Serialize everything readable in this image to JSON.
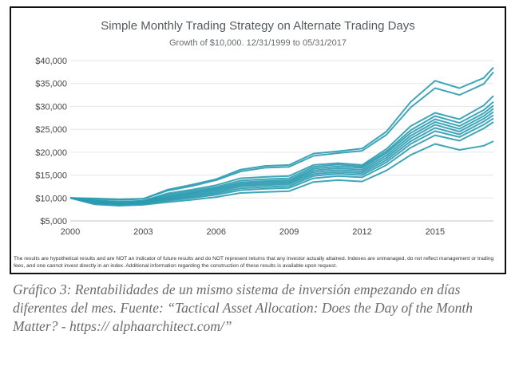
{
  "chart_data": {
    "type": "line",
    "title": "Simple Monthly Trading Strategy on Alternate Trading Days",
    "subtitle": "Growth of $10,000. 12/31/1999 to 05/31/2017",
    "xlabel": "",
    "ylabel": "",
    "x_ticks": [
      "2000",
      "2003",
      "2006",
      "2009",
      "2012",
      "2015"
    ],
    "y_ticks": [
      "$5,000",
      "$10,000",
      "$15,000",
      "$20,000",
      "$25,000",
      "$30,000",
      "$35,000",
      "$40,000"
    ],
    "xlim": [
      2000,
      2017.4
    ],
    "ylim": [
      5000,
      40000
    ],
    "grid": "horizontal",
    "line_color": "#2a9bb0",
    "series": [
      {
        "x": [
          2000,
          2001,
          2002,
          2003,
          2004,
          2005,
          2006,
          2007,
          2008,
          2009,
          2010,
          2011,
          2012,
          2013,
          2014,
          2015,
          2016,
          2017,
          2017.4
        ],
        "values": [
          10000,
          9800,
          9600,
          9800,
          11800,
          12900,
          14100,
          16200,
          17000,
          17200,
          19700,
          20200,
          20800,
          24500,
          31000,
          35600,
          34000,
          36200,
          38500
        ]
      },
      {
        "x": [
          2000,
          2001,
          2002,
          2003,
          2004,
          2005,
          2006,
          2007,
          2008,
          2009,
          2010,
          2011,
          2012,
          2013,
          2014,
          2015,
          2016,
          2017,
          2017.4
        ],
        "values": [
          10000,
          9900,
          9700,
          9800,
          11600,
          12600,
          13900,
          15800,
          16600,
          16800,
          19200,
          19800,
          20300,
          23800,
          29800,
          34000,
          32500,
          34900,
          37500
        ]
      },
      {
        "x": [
          2000,
          2001,
          2002,
          2003,
          2004,
          2005,
          2006,
          2007,
          2008,
          2009,
          2010,
          2011,
          2012,
          2013,
          2014,
          2015,
          2016,
          2017,
          2017.4
        ],
        "values": [
          10000,
          9500,
          9200,
          9400,
          11000,
          11800,
          12800,
          14300,
          14600,
          14800,
          17200,
          17600,
          17200,
          20700,
          25700,
          28600,
          27200,
          30200,
          32300
        ]
      },
      {
        "x": [
          2000,
          2001,
          2002,
          2003,
          2004,
          2005,
          2006,
          2007,
          2008,
          2009,
          2010,
          2011,
          2012,
          2013,
          2014,
          2015,
          2016,
          2017,
          2017.4
        ],
        "values": [
          10000,
          9400,
          9100,
          9300,
          10700,
          11500,
          12400,
          13800,
          14100,
          14300,
          16800,
          17300,
          16900,
          20200,
          24800,
          27900,
          26400,
          29200,
          31000
        ]
      },
      {
        "x": [
          2000,
          2001,
          2002,
          2003,
          2004,
          2005,
          2006,
          2007,
          2008,
          2009,
          2010,
          2011,
          2012,
          2013,
          2014,
          2015,
          2016,
          2017,
          2017.4
        ],
        "values": [
          10000,
          9300,
          9000,
          9200,
          10400,
          11200,
          12100,
          13400,
          13700,
          13900,
          16400,
          16900,
          16600,
          19800,
          24200,
          27200,
          25700,
          28500,
          30200
        ]
      },
      {
        "x": [
          2000,
          2001,
          2002,
          2003,
          2004,
          2005,
          2006,
          2007,
          2008,
          2009,
          2010,
          2011,
          2012,
          2013,
          2014,
          2015,
          2016,
          2017,
          2017.4
        ],
        "values": [
          10000,
          9200,
          8900,
          9100,
          10200,
          11000,
          11900,
          13100,
          13400,
          13600,
          16000,
          16500,
          16200,
          19300,
          23600,
          26600,
          25100,
          27900,
          29500
        ]
      },
      {
        "x": [
          2000,
          2001,
          2002,
          2003,
          2004,
          2005,
          2006,
          2007,
          2008,
          2009,
          2010,
          2011,
          2012,
          2013,
          2014,
          2015,
          2016,
          2017,
          2017.4
        ],
        "values": [
          10000,
          9100,
          8800,
          9000,
          10000,
          10800,
          11600,
          12800,
          13100,
          13300,
          15600,
          16100,
          15800,
          18800,
          23000,
          26000,
          24500,
          27300,
          28800
        ]
      },
      {
        "x": [
          2000,
          2001,
          2002,
          2003,
          2004,
          2005,
          2006,
          2007,
          2008,
          2009,
          2010,
          2011,
          2012,
          2013,
          2014,
          2015,
          2016,
          2017,
          2017.4
        ],
        "values": [
          10000,
          9000,
          8700,
          8900,
          9800,
          10500,
          11300,
          12500,
          12800,
          13000,
          15200,
          15700,
          15400,
          18300,
          22400,
          25300,
          23900,
          26700,
          28100
        ]
      },
      {
        "x": [
          2000,
          2001,
          2002,
          2003,
          2004,
          2005,
          2006,
          2007,
          2008,
          2009,
          2010,
          2011,
          2012,
          2013,
          2014,
          2015,
          2016,
          2017,
          2017.4
        ],
        "values": [
          10000,
          8900,
          8600,
          8800,
          9600,
          10300,
          11000,
          12100,
          12400,
          12600,
          14800,
          15300,
          15000,
          17800,
          21800,
          24600,
          23300,
          26000,
          27400
        ]
      },
      {
        "x": [
          2000,
          2001,
          2002,
          2003,
          2004,
          2005,
          2006,
          2007,
          2008,
          2009,
          2010,
          2011,
          2012,
          2013,
          2014,
          2015,
          2016,
          2017,
          2017.4
        ],
        "values": [
          10000,
          8800,
          8500,
          8700,
          9400,
          10000,
          10700,
          11700,
          12000,
          12200,
          14300,
          14800,
          14500,
          17200,
          21000,
          23700,
          22500,
          25200,
          26600
        ]
      },
      {
        "x": [
          2000,
          2001,
          2002,
          2003,
          2004,
          2005,
          2006,
          2007,
          2008,
          2009,
          2010,
          2011,
          2012,
          2013,
          2014,
          2015,
          2016,
          2017,
          2017.4
        ],
        "values": [
          10000,
          8600,
          8300,
          8500,
          9100,
          9600,
          10200,
          11100,
          11300,
          11500,
          13500,
          13900,
          13600,
          16000,
          19400,
          21800,
          20500,
          21400,
          22400
        ]
      }
    ]
  },
  "disclaimer": "The results are hypothetical results and are NOT an indicator of future results and do NOT represent returns that any investor actually attained. Indexes are unmanaged, do not reflect management or trading fees, and one cannot invest directly in an index. Additional information regarding the construction of these results is available upon request.",
  "caption": "Gráfico 3: Rentabilidades de un mismo sistema de inversión empezando en días diferentes del mes. Fuente: “Tactical Asset Allocation: Does the Day of the Month Matter? - https:// alphaarchitect.com/”"
}
